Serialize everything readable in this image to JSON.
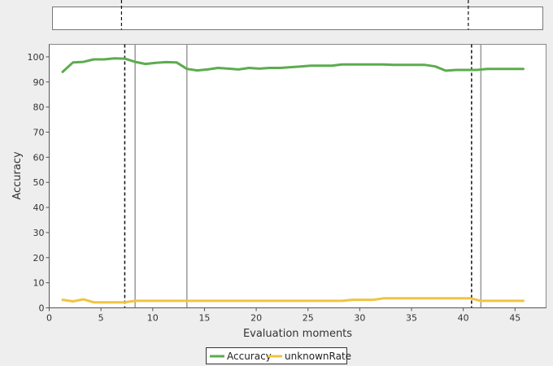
{
  "chart_data": {
    "type": "line",
    "title": "",
    "xlabel": "Evaluation moments",
    "ylabel": "Accuracy",
    "xlim": [
      0,
      48
    ],
    "ylim": [
      0,
      105
    ],
    "xticks": [
      0,
      5,
      10,
      15,
      20,
      25,
      30,
      35,
      40,
      45
    ],
    "yticks": [
      0,
      10,
      20,
      30,
      40,
      50,
      60,
      70,
      80,
      90,
      100
    ],
    "grid": false,
    "legend_position": "bottom-center",
    "series": [
      {
        "name": "Accuracy",
        "color": "#5cac4e",
        "x": [
          1.3,
          2.3,
          3.3,
          4.3,
          5.3,
          6.3,
          7.3,
          8.3,
          9.3,
          10.3,
          11.3,
          12.3,
          13.3,
          14.3,
          15.3,
          16.3,
          17.3,
          18.3,
          19.3,
          20.3,
          21.3,
          22.3,
          23.3,
          24.3,
          25.3,
          26.3,
          27.3,
          28.3,
          29.3,
          30.3,
          31.3,
          32.3,
          33.3,
          34.3,
          35.3,
          36.3,
          37.3,
          38.3,
          39.3,
          40.3,
          41.3,
          42.3,
          43.3,
          44.3,
          45.3,
          45.8
        ],
        "values": [
          94,
          97.8,
          98,
          99,
          99,
          99.4,
          99.3,
          98,
          97.2,
          97.6,
          97.9,
          97.8,
          95.2,
          94.6,
          95,
          95.6,
          95.3,
          95,
          95.6,
          95.3,
          95.6,
          95.6,
          95.9,
          96.2,
          96.5,
          96.5,
          96.5,
          97,
          97,
          97,
          97,
          97,
          96.8,
          96.8,
          96.8,
          96.8,
          96.2,
          94.5,
          94.8,
          94.8,
          94.8,
          95.2,
          95.2,
          95.2,
          95.2,
          95.2
        ]
      },
      {
        "name": "unknownRate",
        "color": "#f0c442",
        "x": [
          1.3,
          2.3,
          3.3,
          4.3,
          5.3,
          6.3,
          7.3,
          8.3,
          28.3,
          29.3,
          30.3,
          31.3,
          32.3,
          40.7,
          41.7,
          45.8
        ],
        "values": [
          3.2,
          2.6,
          3.4,
          2.2,
          2.2,
          2.2,
          2.2,
          2.8,
          2.8,
          3.2,
          3.2,
          3.2,
          3.8,
          3.8,
          2.8,
          2.8
        ]
      }
    ],
    "markers": {
      "dashed": [
        7.3,
        40.8
      ],
      "solid": [
        8.3,
        13.3,
        41.7
      ]
    }
  }
}
